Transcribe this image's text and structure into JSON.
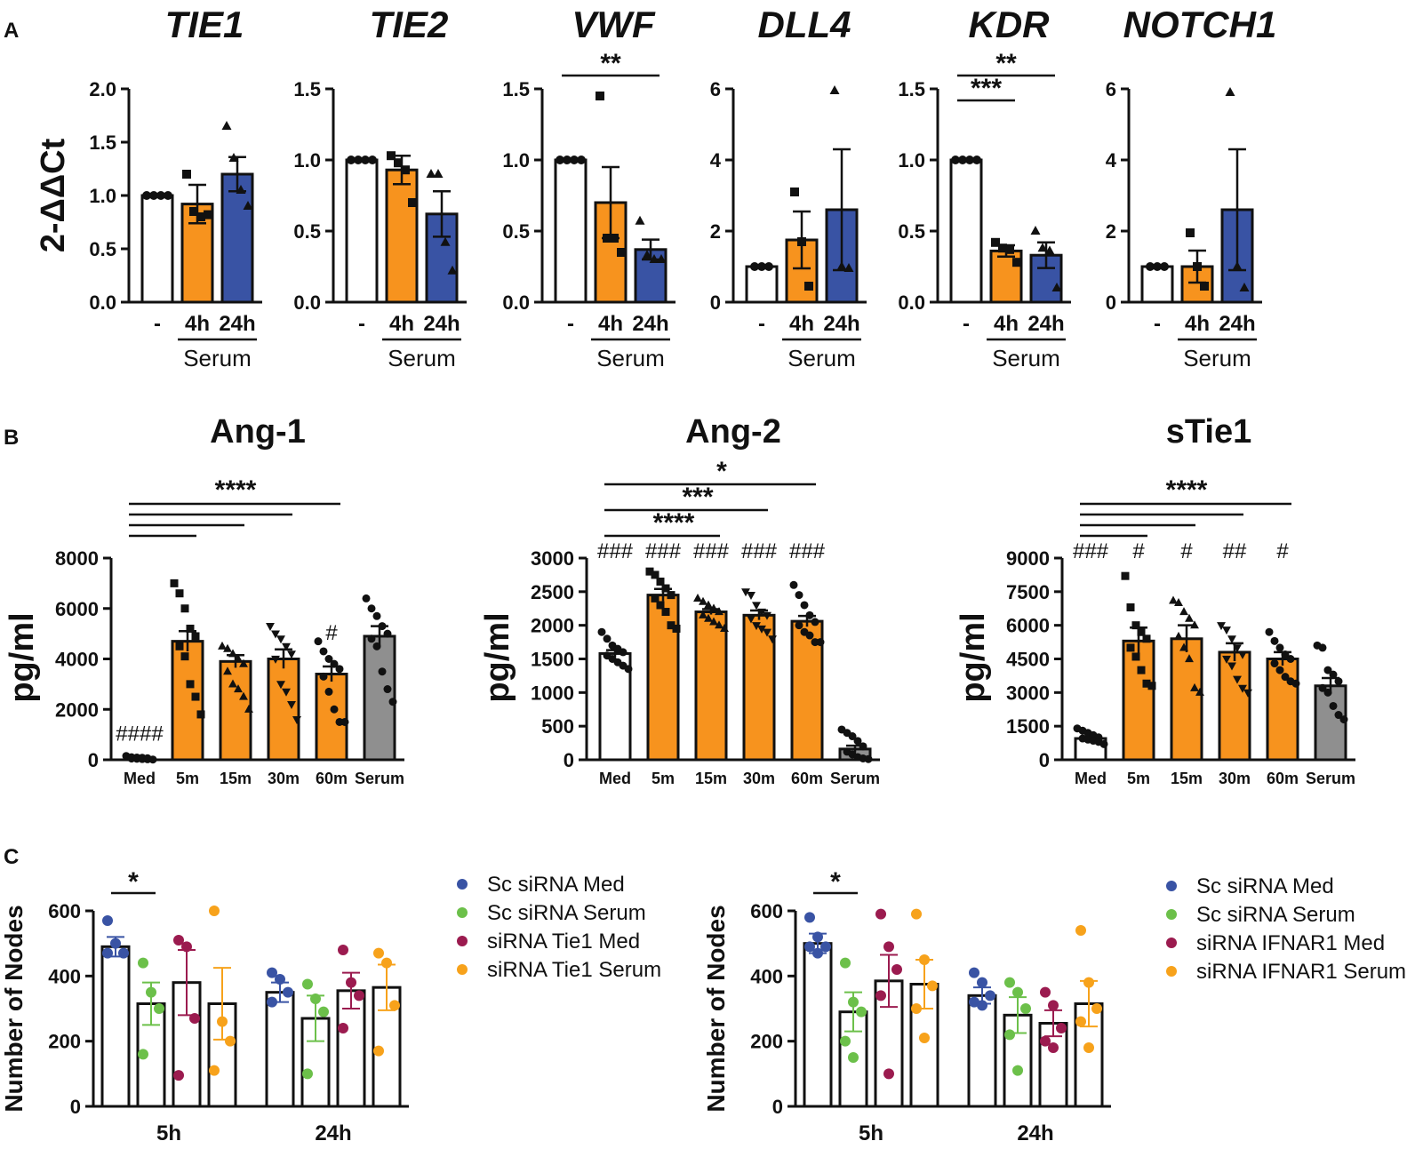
{
  "panel_labels": [
    "A",
    "B",
    "C"
  ],
  "chart_data": [
    {
      "panel": "A",
      "type": "bar",
      "title": "TIE1",
      "ylabel": "2-ΔΔCt",
      "ylim": [
        0,
        2.0
      ],
      "yticks": [
        "0.0",
        "0.5",
        "1.0",
        "1.5",
        "2.0"
      ],
      "categories": [
        "-",
        "4h",
        "24h"
      ],
      "group_label": "Serum",
      "values": [
        1.0,
        0.92,
        1.2
      ],
      "errors": [
        0,
        0.18,
        0.16
      ],
      "colors": [
        "#ffffff",
        "#f7931e",
        "#3953a4"
      ],
      "markers": [
        "circle",
        "square",
        "triangle"
      ],
      "points": [
        [
          1.0,
          1.0,
          1.0,
          1.0
        ],
        [
          1.2,
          0.85,
          0.8,
          0.82
        ],
        [
          1.65,
          1.35,
          1.05,
          0.9
        ]
      ],
      "significance": []
    },
    {
      "panel": "A",
      "type": "bar",
      "title": "TIE2",
      "ylim": [
        0,
        1.5
      ],
      "yticks": [
        "0.0",
        "0.5",
        "1.0",
        "1.5"
      ],
      "categories": [
        "-",
        "4h",
        "24h"
      ],
      "group_label": "Serum",
      "values": [
        1.0,
        0.93,
        0.62
      ],
      "errors": [
        0,
        0.1,
        0.16
      ],
      "colors": [
        "#ffffff",
        "#f7931e",
        "#3953a4"
      ],
      "markers": [
        "circle",
        "square",
        "triangle"
      ],
      "points": [
        [
          1.0,
          1.0,
          1.0,
          1.0
        ],
        [
          1.03,
          0.98,
          0.93,
          0.7
        ],
        [
          0.9,
          0.9,
          0.42,
          0.22
        ]
      ],
      "significance": []
    },
    {
      "panel": "A",
      "type": "bar",
      "title": "VWF",
      "ylim": [
        0,
        1.5
      ],
      "yticks": [
        "0.0",
        "0.5",
        "1.0",
        "1.5"
      ],
      "categories": [
        "-",
        "4h",
        "24h"
      ],
      "group_label": "Serum",
      "values": [
        1.0,
        0.7,
        0.37
      ],
      "errors": [
        0,
        0.25,
        0.07
      ],
      "colors": [
        "#ffffff",
        "#f7931e",
        "#3953a4"
      ],
      "markers": [
        "circle",
        "square",
        "triangle"
      ],
      "points": [
        [
          1.0,
          1.0,
          1.0,
          1.0
        ],
        [
          1.45,
          0.45,
          0.45,
          0.35
        ],
        [
          0.57,
          0.33,
          0.3,
          0.3
        ]
      ],
      "significance": [
        {
          "from": 0,
          "to": 2,
          "label": "**"
        }
      ]
    },
    {
      "panel": "A",
      "type": "bar",
      "title": "DLL4",
      "ylim": [
        0,
        6
      ],
      "yticks": [
        "0",
        "2",
        "4",
        "6"
      ],
      "categories": [
        "-",
        "4h",
        "24h"
      ],
      "group_label": "Serum",
      "values": [
        1.0,
        1.75,
        2.6
      ],
      "errors": [
        0,
        0.8,
        1.7
      ],
      "colors": [
        "#ffffff",
        "#f7931e",
        "#3953a4"
      ],
      "markers": [
        "circle",
        "square",
        "triangle"
      ],
      "points": [
        [
          1.0,
          1.0,
          1.0
        ],
        [
          3.1,
          1.7,
          0.45
        ],
        [
          5.95,
          1.0,
          0.95
        ]
      ],
      "significance": []
    },
    {
      "panel": "A",
      "type": "bar",
      "title": "KDR",
      "ylim": [
        0,
        1.5
      ],
      "yticks": [
        "0.0",
        "0.5",
        "1.0",
        "1.5"
      ],
      "categories": [
        "-",
        "4h",
        "24h"
      ],
      "group_label": "Serum",
      "values": [
        1.0,
        0.36,
        0.33
      ],
      "errors": [
        0,
        0.04,
        0.09
      ],
      "colors": [
        "#ffffff",
        "#f7931e",
        "#3953a4"
      ],
      "markers": [
        "circle",
        "square",
        "triangle"
      ],
      "points": [
        [
          1.0,
          1.0,
          1.0,
          1.0
        ],
        [
          0.42,
          0.38,
          0.37,
          0.28
        ],
        [
          0.5,
          0.38,
          0.36,
          0.1
        ]
      ],
      "significance": [
        {
          "from": 0,
          "to": 2,
          "label": "**"
        },
        {
          "from": 0,
          "to": 1,
          "label": "***"
        }
      ]
    },
    {
      "panel": "A",
      "type": "bar",
      "title": "NOTCH1",
      "ylim": [
        0,
        6
      ],
      "yticks": [
        "0",
        "2",
        "4",
        "6"
      ],
      "categories": [
        "-",
        "4h",
        "24h"
      ],
      "group_label": "Serum",
      "values": [
        1.0,
        1.0,
        2.6
      ],
      "errors": [
        0,
        0.45,
        1.7
      ],
      "colors": [
        "#ffffff",
        "#f7931e",
        "#3953a4"
      ],
      "markers": [
        "circle",
        "square",
        "triangle"
      ],
      "points": [
        [
          1.0,
          1.0,
          1.0
        ],
        [
          1.95,
          1.0,
          0.45
        ],
        [
          5.9,
          1.0,
          0.4
        ]
      ],
      "significance": []
    },
    {
      "panel": "B",
      "type": "bar",
      "title": "Ang-1",
      "ylabel": "pg/ml",
      "ylim": [
        0,
        8000
      ],
      "yticks": [
        "0",
        "2000",
        "4000",
        "6000",
        "8000"
      ],
      "categories": [
        "Med",
        "5m",
        "15m",
        "30m",
        "60m",
        "Serum"
      ],
      "values": [
        60,
        4700,
        3900,
        4000,
        3400,
        4900
      ],
      "errors": [
        20,
        400,
        250,
        380,
        300,
        400
      ],
      "colors": [
        "#ffffff",
        "#f7931e",
        "#f7931e",
        "#f7931e",
        "#f7931e",
        "#8f8f8f"
      ],
      "markers": [
        "circle",
        "square",
        "triangle",
        "triangle-down",
        "circle",
        "circle"
      ],
      "points": [
        [
          150,
          100,
          90,
          80,
          60,
          50,
          40,
          30,
          20,
          10
        ],
        [
          7000,
          6600,
          6000,
          5200,
          4900,
          4500,
          4100,
          3000,
          2500,
          1800
        ],
        [
          4500,
          4400,
          4200,
          4000,
          3800,
          3500,
          3000,
          2800,
          2500,
          2000
        ],
        [
          5300,
          5000,
          4800,
          4500,
          4200,
          4000,
          3000,
          2700,
          2200,
          1600
        ],
        [
          4700,
          4300,
          4000,
          3800,
          3600,
          3300,
          2700,
          2000,
          1500,
          1500
        ],
        [
          6400,
          6000,
          5700,
          5300,
          5000,
          4800,
          4500,
          3500,
          2800,
          2300
        ]
      ],
      "bars_sig": [
        {
          "to": 1
        },
        {
          "to": 2
        },
        {
          "to": 3
        },
        {
          "to": 4
        }
      ],
      "sig_label": "****",
      "hash_labels": [
        "####",
        "",
        "",
        "",
        "#",
        ""
      ]
    },
    {
      "panel": "B",
      "type": "bar",
      "title": "Ang-2",
      "ylabel": "pg/ml",
      "ylim": [
        0,
        3000
      ],
      "yticks": [
        "0",
        "500",
        "1000",
        "1500",
        "2000",
        "2500",
        "3000"
      ],
      "categories": [
        "Med",
        "5m",
        "15m",
        "30m",
        "60m",
        "Serum"
      ],
      "values": [
        1580,
        2450,
        2200,
        2150,
        2060,
        160
      ],
      "errors": [
        50,
        90,
        40,
        70,
        80,
        50
      ],
      "colors": [
        "#ffffff",
        "#f7931e",
        "#f7931e",
        "#f7931e",
        "#f7931e",
        "#8f8f8f"
      ],
      "markers": [
        "circle",
        "square",
        "triangle",
        "triangle-down",
        "circle",
        "circle"
      ],
      "points": [
        [
          1900,
          1800,
          1700,
          1650,
          1600,
          1550,
          1500,
          1450,
          1400,
          1350
        ],
        [
          2800,
          2750,
          2650,
          2550,
          2450,
          2400,
          2300,
          2200,
          2000,
          1950
        ],
        [
          2400,
          2350,
          2300,
          2250,
          2200,
          2150,
          2100,
          2050,
          2000,
          1950
        ],
        [
          2500,
          2450,
          2300,
          2200,
          2150,
          2100,
          2000,
          1950,
          1900,
          1800
        ],
        [
          2600,
          2450,
          2300,
          2150,
          2050,
          2000,
          1900,
          1850,
          1750,
          1750
        ],
        [
          450,
          400,
          350,
          280,
          200,
          120,
          80,
          40,
          20,
          10
        ]
      ],
      "sig_pairs": [
        {
          "to": 2,
          "label": "****"
        },
        {
          "to": 3,
          "label": "***"
        },
        {
          "to": 4,
          "label": "*"
        }
      ],
      "hash_labels": [
        "###",
        "###",
        "###",
        "###",
        "###",
        ""
      ]
    },
    {
      "panel": "B",
      "type": "bar",
      "title": "sTie1",
      "ylabel": "pg/ml",
      "ylim": [
        0,
        9000
      ],
      "yticks": [
        "0",
        "1500",
        "3000",
        "4500",
        "6000",
        "7500",
        "9000"
      ],
      "categories": [
        "Med",
        "5m",
        "15m",
        "30m",
        "60m",
        "Serum"
      ],
      "values": [
        950,
        5300,
        5400,
        4800,
        4500,
        3300
      ],
      "errors": [
        80,
        600,
        600,
        400,
        300,
        350
      ],
      "colors": [
        "#ffffff",
        "#f7931e",
        "#f7931e",
        "#f7931e",
        "#f7931e",
        "#8f8f8f"
      ],
      "markers": [
        "circle",
        "square",
        "triangle",
        "triangle-down",
        "circle",
        "circle"
      ],
      "points": [
        [
          1400,
          1300,
          1200,
          1100,
          1000,
          950,
          900,
          850,
          800,
          700
        ],
        [
          8200,
          6800,
          6000,
          5700,
          5400,
          5000,
          4600,
          4000,
          3400,
          3300
        ],
        [
          7100,
          7000,
          6600,
          6300,
          6000,
          5500,
          5000,
          4500,
          3200,
          3000
        ],
        [
          6000,
          5800,
          5400,
          5000,
          4700,
          4500,
          4200,
          3600,
          3200,
          3000
        ],
        [
          5700,
          5300,
          5000,
          4700,
          4500,
          4300,
          4000,
          3700,
          3500,
          3400
        ],
        [
          5100,
          5000,
          4000,
          3800,
          3500,
          3200,
          3000,
          2400,
          2000,
          1800
        ]
      ],
      "bars_sig": [
        {
          "to": 1
        },
        {
          "to": 2
        },
        {
          "to": 3
        },
        {
          "to": 4
        }
      ],
      "sig_label": "****",
      "hash_labels": [
        "###",
        "#",
        "#",
        "##",
        "#",
        ""
      ]
    },
    {
      "panel": "C",
      "type": "bar",
      "title": "",
      "ylabel": "Number of Nodes",
      "ylim": [
        0,
        600
      ],
      "yticks": [
        "0",
        "200",
        "400",
        "600"
      ],
      "groups": [
        "5h",
        "24h"
      ],
      "series": [
        {
          "name": "Sc siRNA Med",
          "color": "#3953a4",
          "values": [
            490,
            350
          ],
          "errors": [
            30,
            30
          ],
          "points": [
            [
              570,
              500,
              470,
              470
            ],
            [
              410,
              390,
              350,
              320
            ]
          ]
        },
        {
          "name": "Sc siRNA Serum",
          "color": "#6cc04a",
          "values": [
            315,
            270
          ],
          "errors": [
            65,
            70
          ],
          "points": [
            [
              440,
              350,
              300,
              160
            ],
            [
              375,
              330,
              290,
              100
            ]
          ]
        },
        {
          "name": "siRNA Tie1 Med",
          "color": "#9b1b4f",
          "values": [
            380,
            355
          ],
          "errors": [
            100,
            55
          ],
          "points": [
            [
              510,
              490,
              270,
              95
            ],
            [
              480,
              380,
              340,
              240
            ]
          ]
        },
        {
          "name": "siRNA Tie1 Serum",
          "color": "#f7a21b",
          "values": [
            315,
            365
          ],
          "errors": [
            110,
            70
          ],
          "points": [
            [
              600,
              260,
              200,
              110
            ],
            [
              470,
              440,
              310,
              170
            ]
          ]
        }
      ],
      "significance": [
        {
          "group": 0,
          "from": 0,
          "to": 1,
          "label": "*"
        }
      ]
    },
    {
      "panel": "C",
      "type": "bar",
      "title": "",
      "ylabel": "Number of Nodes",
      "ylim": [
        0,
        600
      ],
      "yticks": [
        "0",
        "200",
        "400",
        "600"
      ],
      "groups": [
        "5h",
        "24h"
      ],
      "series": [
        {
          "name": "Sc siRNA Med",
          "color": "#3953a4",
          "values": [
            500,
            340
          ],
          "errors": [
            30,
            25
          ],
          "points": [
            [
              580,
              520,
              490,
              490,
              470
            ],
            [
              410,
              380,
              340,
              320,
              310
            ]
          ]
        },
        {
          "name": "Sc siRNA Serum",
          "color": "#6cc04a",
          "values": [
            290,
            280
          ],
          "errors": [
            60,
            55
          ],
          "points": [
            [
              440,
              320,
              290,
              200,
              150
            ],
            [
              380,
              350,
              300,
              220,
              110
            ]
          ]
        },
        {
          "name": "siRNA IFNAR1 Med",
          "color": "#9b1b4f",
          "values": [
            385,
            255
          ],
          "errors": [
            80,
            40
          ],
          "points": [
            [
              590,
              490,
              420,
              340,
              100
            ],
            [
              350,
              310,
              240,
              200,
              180
            ]
          ]
        },
        {
          "name": "siRNA IFNAR1 Serum",
          "color": "#f7a21b",
          "values": [
            375,
            315
          ],
          "errors": [
            75,
            70
          ],
          "points": [
            [
              590,
              450,
              370,
              300,
              210
            ],
            [
              540,
              380,
              300,
              260,
              180
            ]
          ]
        }
      ],
      "significance": [
        {
          "group": 0,
          "from": 0,
          "to": 1,
          "label": "*"
        }
      ]
    }
  ]
}
